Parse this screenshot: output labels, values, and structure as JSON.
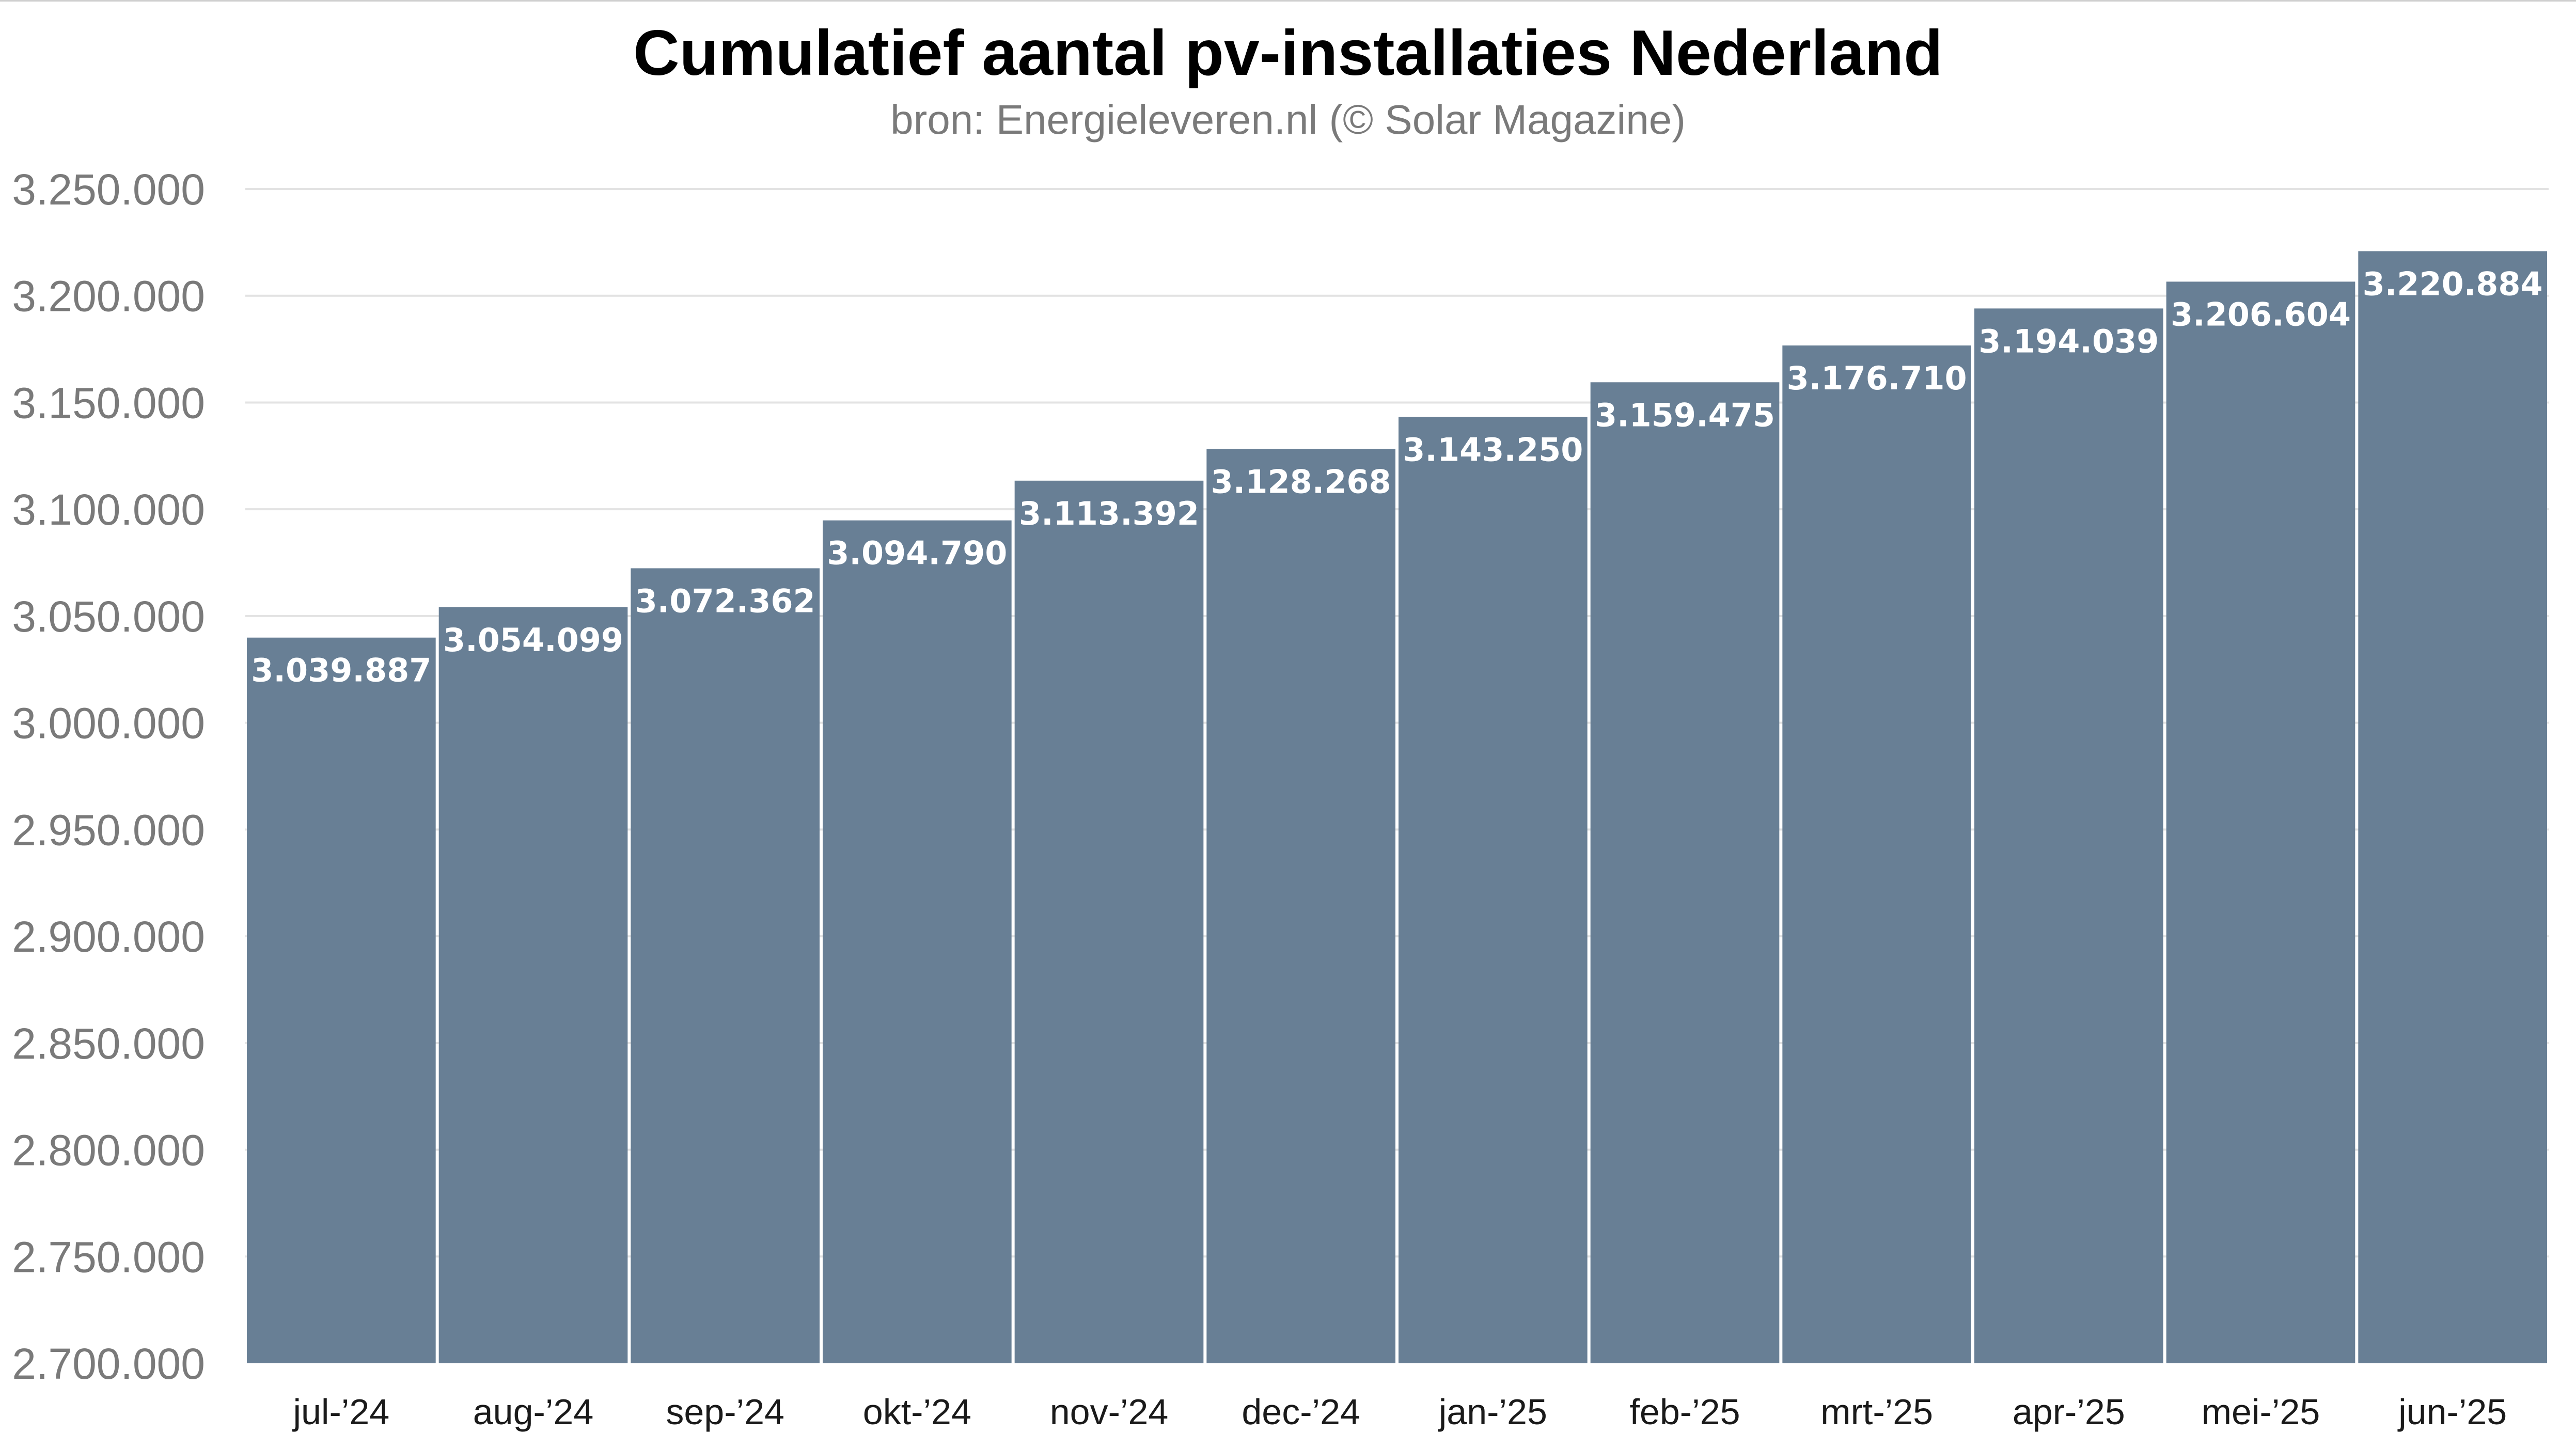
{
  "title": "Cumulatief aantal pv-installaties Nederland",
  "subtitle": "bron: Energieleveren.nl (© Solar Magazine)",
  "colors": {
    "bar": "#687f95",
    "grid": "#e3e3e3",
    "axis_text": "#7a7a7a",
    "category_text": "#1a1a1a",
    "value_text": "#ffffff"
  },
  "chart_data": {
    "type": "bar",
    "title": "Cumulatief aantal pv-installaties Nederland",
    "subtitle": "bron: Energieleveren.nl (© Solar Magazine)",
    "categories": [
      "jul-’24",
      "aug-’24",
      "sep-’24",
      "okt-’24",
      "nov-’24",
      "dec-’24",
      "jan-’25",
      "feb-’25",
      "mrt-’25",
      "apr-’25",
      "mei-’25",
      "jun-’25"
    ],
    "values": [
      3039887,
      3054099,
      3072362,
      3094790,
      3113392,
      3128268,
      3143250,
      3159475,
      3176710,
      3194039,
      3206604,
      3220884
    ],
    "value_labels": [
      "3.039.887",
      "3.054.099",
      "3.072.362",
      "3.094.790",
      "3.113.392",
      "3.128.268",
      "3.143.250",
      "3.159.475",
      "3.176.710",
      "3.194.039",
      "3.206.604",
      "3.220.884"
    ],
    "ylim": [
      2700000,
      3250000
    ],
    "yticks": [
      2700000,
      2750000,
      2800000,
      2850000,
      2900000,
      2950000,
      3000000,
      3050000,
      3100000,
      3150000,
      3200000,
      3250000
    ],
    "ytick_labels": [
      "2.700.000",
      "2.750.000",
      "2.800.000",
      "2.850.000",
      "2.900.000",
      "2.950.000",
      "3.000.000",
      "3.050.000",
      "3.100.000",
      "3.150.000",
      "3.200.000",
      "3.250.000"
    ],
    "xlabel": "",
    "ylabel": "",
    "grid": true,
    "legend": "none"
  }
}
